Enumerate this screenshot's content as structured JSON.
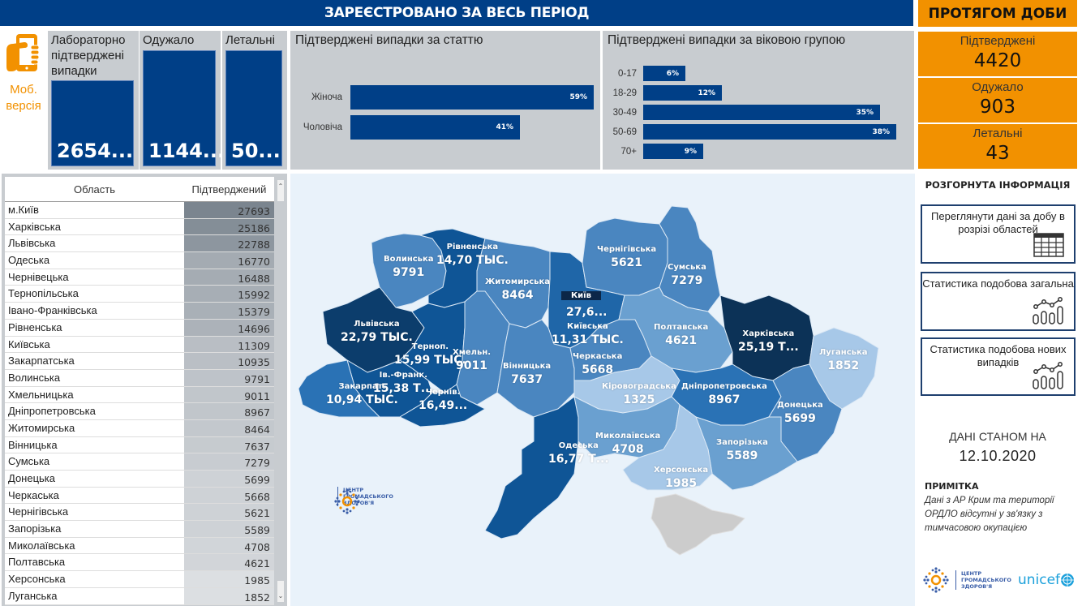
{
  "header": {
    "title": "ЗАРЕЄСТРОВАНО ЗА ВЕСЬ ПЕРІОД",
    "day_title": "ПРОТЯГОМ ДОБИ"
  },
  "mobile": {
    "icon": "phone-in-hand-icon",
    "label_line1": "Моб.",
    "label_line2": "версія"
  },
  "totals": [
    {
      "label": "Лабораторно підтверджені випадки",
      "value": "2654..."
    },
    {
      "label": "Одужало",
      "value": "1144..."
    },
    {
      "label": "Летальні",
      "value": "50..."
    }
  ],
  "colors": {
    "brand_blue": "#003f87",
    "accent_orange": "#f29100",
    "panel_gray": "#c8ccd0",
    "map_bg": "#e9f2fa",
    "crimea_gray": "#cccccc"
  },
  "chart_data": [
    {
      "type": "bar",
      "orientation": "horizontal",
      "title": "Підтверджені випадки за статтю",
      "categories": [
        "Жіноча",
        "Чоловіча"
      ],
      "values": [
        59,
        41
      ],
      "labels": [
        "59%",
        "41%"
      ],
      "unit": "%"
    },
    {
      "type": "bar",
      "orientation": "horizontal",
      "title": "Підтверджені випадки за віковою групою",
      "categories": [
        "0-17",
        "18-29",
        "30-49",
        "50-69",
        "70+"
      ],
      "values": [
        6,
        12,
        35,
        38,
        9
      ],
      "labels": [
        "6%",
        "12%",
        "35%",
        "38%",
        "9%"
      ],
      "unit": "%"
    }
  ],
  "daily": [
    {
      "label": "Підтверджені",
      "value": "4420"
    },
    {
      "label": "Одужало",
      "value": "903"
    },
    {
      "label": "Летальні",
      "value": "43"
    }
  ],
  "table": {
    "headers": [
      "Область",
      "Підтверджений"
    ],
    "rows": [
      [
        "м.Київ",
        "27693"
      ],
      [
        "Харківська",
        "25186"
      ],
      [
        "Львівська",
        "22788"
      ],
      [
        "Одеська",
        "16770"
      ],
      [
        "Чернівецька",
        "16488"
      ],
      [
        "Тернопільська",
        "15992"
      ],
      [
        "Івано-Франківська",
        "15379"
      ],
      [
        "Рівненська",
        "14696"
      ],
      [
        "Київська",
        "11309"
      ],
      [
        "Закарпатська",
        "10935"
      ],
      [
        "Волинська",
        "9791"
      ],
      [
        "Хмельницька",
        "9011"
      ],
      [
        "Дніпропетровська",
        "8967"
      ],
      [
        "Житомирська",
        "8464"
      ],
      [
        "Вінницька",
        "7637"
      ],
      [
        "Сумська",
        "7279"
      ],
      [
        "Донецька",
        "5699"
      ],
      [
        "Черкаська",
        "5668"
      ],
      [
        "Чернігівська",
        "5621"
      ],
      [
        "Запорізька",
        "5589"
      ],
      [
        "Миколаївська",
        "4708"
      ],
      [
        "Полтавська",
        "4621"
      ],
      [
        "Херсонська",
        "1985"
      ],
      [
        "Луганська",
        "1852"
      ]
    ]
  },
  "map": {
    "regions": [
      {
        "name": "Волинська",
        "value": "9791"
      },
      {
        "name": "Рівненська",
        "value": "14,70 ТЫС."
      },
      {
        "name": "Житомирська",
        "value": "8464"
      },
      {
        "name": "Київ",
        "value": "27,6..."
      },
      {
        "name": "Київська",
        "value": "11,31 ТЫС."
      },
      {
        "name": "Чернігівська",
        "value": "5621"
      },
      {
        "name": "Сумська",
        "value": "7279"
      },
      {
        "name": "Львівська",
        "value": "22,79 ТЫС."
      },
      {
        "name": "Терноп.",
        "value": "15,99 ТЫС."
      },
      {
        "name": "Хмельн.",
        "value": "9011"
      },
      {
        "name": "Вінницька",
        "value": "7637"
      },
      {
        "name": "Черкаська",
        "value": "5668"
      },
      {
        "name": "Полтавська",
        "value": "4621"
      },
      {
        "name": "Харківська",
        "value": "25,19 Т..."
      },
      {
        "name": "Луганська",
        "value": "1852"
      },
      {
        "name": "Ів.-Франк.",
        "value": "15,38 Т..."
      },
      {
        "name": "Закарпат.",
        "value": "10,94 ТЫС."
      },
      {
        "name": "Чернів.",
        "value": "16,49..."
      },
      {
        "name": "Кіровоградська",
        "value": "1325"
      },
      {
        "name": "Дніпропетровська",
        "value": "8967"
      },
      {
        "name": "Донецька",
        "value": "5699"
      },
      {
        "name": "Одеська",
        "value": "16,77 Т..."
      },
      {
        "name": "Миколаївська",
        "value": "4708"
      },
      {
        "name": "Запорізька",
        "value": "5589"
      },
      {
        "name": "Херсонська",
        "value": "1985"
      }
    ],
    "logo_text": [
      "ЦЕНТР",
      "ГРОМАДСЬКОГО",
      "ЗДОРОВ'Я"
    ]
  },
  "right_panel": {
    "title": "РОЗГОРНУТА ІНФОРМАЦІЯ",
    "buttons": [
      {
        "label": "Переглянути дані за добу в розрізі областей",
        "icon": "table-icon"
      },
      {
        "label": "Статистика подобова загальна",
        "icon": "chart-icon"
      },
      {
        "label": "Статистика подобова нових випадків",
        "icon": "chart-icon"
      }
    ],
    "as_of_label": "ДАНІ СТАНОМ НА",
    "as_of_date": "12.10.2020",
    "note_title": "ПРИМІТКА",
    "note_text": "Дані з АР Крим та території ОРДЛО відсутні у зв'язку з тимчасовою окупацією",
    "logo_text": [
      "ЦЕНТР",
      "ГРОМАДСЬКОГО",
      "ЗДОРОВ'Я"
    ],
    "unicef": "unicef"
  }
}
